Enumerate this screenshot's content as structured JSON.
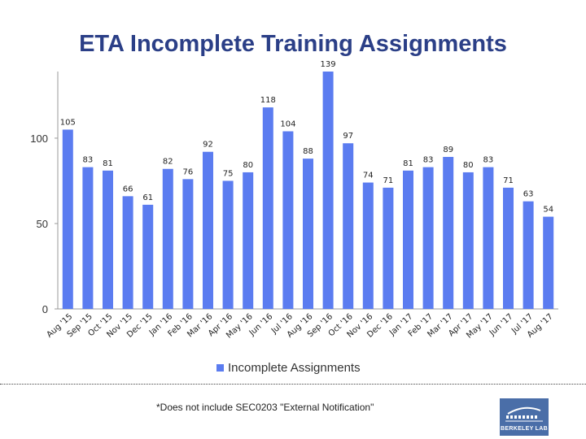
{
  "chart_data": {
    "type": "bar",
    "title": "ETA Incomplete Training Assignments",
    "categories": [
      "Aug '15",
      "Sep '15",
      "Oct '15",
      "Nov '15",
      "Dec '15",
      "Jan '16",
      "Feb '16",
      "Mar '16",
      "Apr '16",
      "May '16",
      "Jun '16",
      "Jul '16",
      "Aug '16",
      "Sep '16",
      "Oct '16",
      "Nov '16",
      "Dec '16",
      "Jan '17",
      "Feb '17",
      "Mar '17",
      "Apr '17",
      "May '17",
      "Jun '17",
      "Jul '17",
      "Aug '17"
    ],
    "series": [
      {
        "name": "Incomplete Assignments",
        "values": [
          105,
          83,
          81,
          66,
          61,
          82,
          76,
          92,
          75,
          80,
          118,
          104,
          88,
          139,
          97,
          74,
          71,
          81,
          83,
          89,
          80,
          83,
          71,
          63,
          54
        ]
      }
    ],
    "yticks": [
      "0",
      "50",
      "100"
    ],
    "ylim": [
      0,
      139
    ],
    "grid": false,
    "legend_position": "bottom",
    "bar_color": "#5b7cf0"
  },
  "footnote": "*Does not include SEC0203 \"External Notification\"",
  "logo": {
    "text": "BERKELEY LAB",
    "icon": "berkeley-lab-logo-icon",
    "color": "#4a6ea8"
  }
}
